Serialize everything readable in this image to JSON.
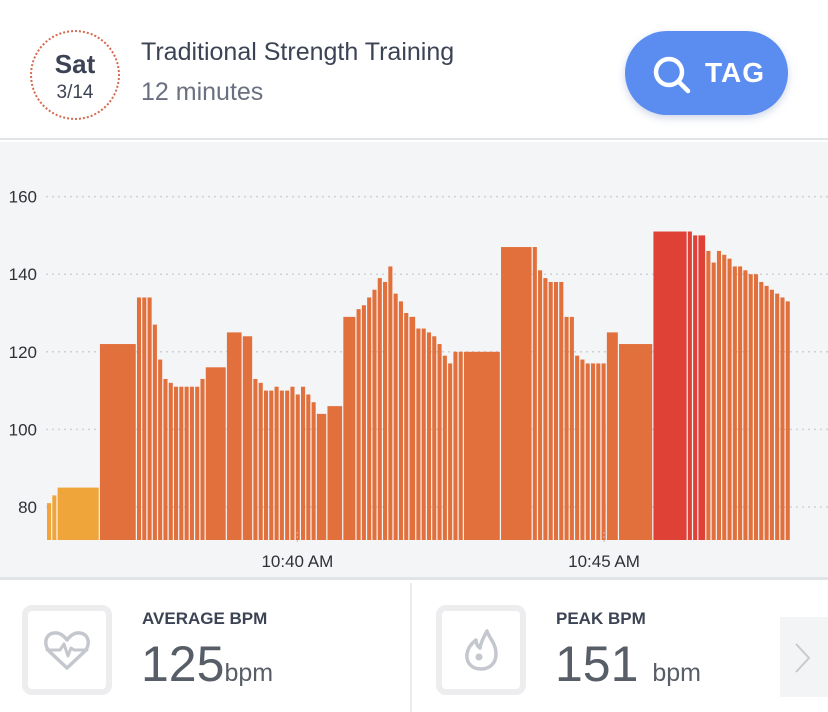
{
  "header": {
    "day": "Sat",
    "date": "3/14",
    "title": "Traditional Strength Training",
    "duration": "12 minutes",
    "tag_button": {
      "label": "TAG",
      "icon": "search-icon"
    }
  },
  "colors": {
    "accent": "#5b8cf0",
    "zone_low": "#f0a53a",
    "zone_mid": "#e2703c",
    "zone_peak": "#e04137",
    "badge_border": "#d8694e"
  },
  "chart_data": {
    "type": "bar",
    "title": "",
    "xlabel": "",
    "ylabel": "",
    "ylim": [
      71.5,
      165
    ],
    "yticks": [
      "80",
      "100",
      "120",
      "140",
      "160"
    ],
    "ytick_values": [
      80,
      100,
      120,
      140,
      160
    ],
    "xticks": [
      "10:40 AM",
      "10:45 AM"
    ],
    "grid": true,
    "legend": "none",
    "values": [
      81,
      83,
      85,
      122,
      134,
      134,
      134,
      127,
      118,
      113,
      112,
      111,
      111,
      111,
      111,
      111,
      113,
      116,
      125,
      124,
      113,
      112,
      110,
      110,
      111,
      110,
      110,
      111,
      109,
      111,
      109,
      107,
      104,
      106,
      129,
      131,
      132,
      134,
      136,
      139,
      138,
      142,
      135,
      133,
      130,
      129,
      126,
      126,
      125,
      124,
      122,
      119,
      117,
      120,
      120,
      120,
      147,
      147,
      141,
      139,
      138,
      138,
      138,
      129,
      129,
      119,
      118,
      117,
      117,
      117,
      117,
      125,
      122,
      151,
      151,
      150,
      150,
      146,
      143,
      146,
      145,
      144,
      142,
      142,
      141,
      140,
      140,
      138,
      137,
      136,
      135,
      134,
      133
    ],
    "durations": [
      1,
      1,
      8,
      7,
      1,
      1,
      1,
      1,
      1,
      1,
      1,
      1,
      1,
      1,
      1,
      1,
      1,
      4,
      3,
      2,
      1,
      1,
      1,
      1,
      1,
      1,
      1,
      1,
      1,
      1,
      1,
      1,
      2,
      3,
      2.5,
      1,
      1,
      1,
      1,
      1,
      1,
      1,
      1,
      1,
      1,
      1.3,
      1,
      1,
      1,
      1,
      1,
      1,
      1,
      1,
      1,
      7,
      6,
      1,
      1,
      1,
      1,
      1,
      1,
      1,
      1,
      1,
      1,
      1,
      1,
      1,
      1,
      2.3,
      6.5,
      6.5,
      1,
      1,
      1.5,
      1,
      1,
      1,
      1,
      1,
      1,
      1,
      1,
      1,
      1,
      1,
      1,
      1,
      1,
      1,
      1
    ],
    "zones": [
      "low",
      "low",
      "low",
      "mid",
      "mid",
      "mid",
      "mid",
      "mid",
      "mid",
      "mid",
      "mid",
      "mid",
      "mid",
      "mid",
      "mid",
      "mid",
      "mid",
      "mid",
      "mid",
      "mid",
      "mid",
      "mid",
      "mid",
      "mid",
      "mid",
      "mid",
      "mid",
      "mid",
      "mid",
      "mid",
      "mid",
      "mid",
      "mid",
      "mid",
      "mid",
      "mid",
      "mid",
      "mid",
      "mid",
      "mid",
      "mid",
      "mid",
      "mid",
      "mid",
      "mid",
      "mid",
      "mid",
      "mid",
      "mid",
      "mid",
      "mid",
      "mid",
      "mid",
      "mid",
      "mid",
      "mid",
      "mid",
      "mid",
      "mid",
      "mid",
      "mid",
      "mid",
      "mid",
      "mid",
      "mid",
      "mid",
      "mid",
      "mid",
      "mid",
      "mid",
      "mid",
      "mid",
      "mid",
      "peak",
      "peak",
      "peak",
      "peak",
      "mid",
      "mid",
      "mid",
      "mid",
      "mid",
      "mid",
      "mid",
      "mid",
      "mid",
      "mid",
      "mid",
      "mid",
      "mid",
      "mid",
      "mid",
      "mid"
    ]
  },
  "stats": {
    "average": {
      "label": "AVERAGE BPM",
      "value": "125",
      "unit": "bpm",
      "icon": "heart-pulse-icon"
    },
    "peak": {
      "label": "PEAK BPM",
      "value": "151",
      "unit": "bpm",
      "icon": "flame-icon"
    },
    "next_icon": "chevron-right-icon"
  }
}
